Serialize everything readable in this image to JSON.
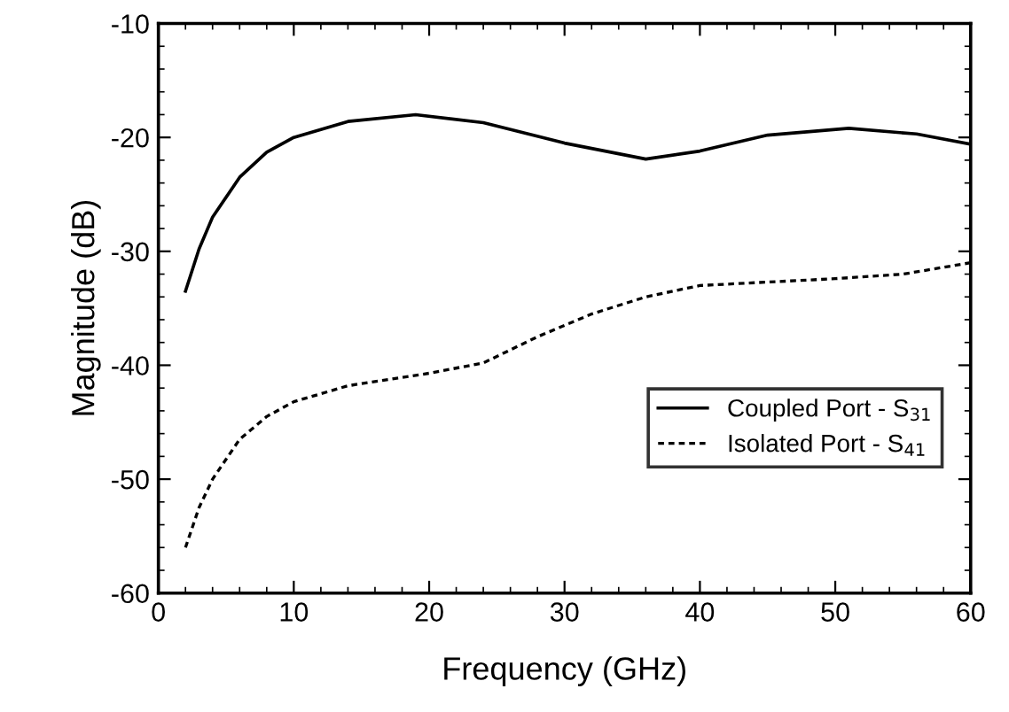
{
  "chart_data": {
    "type": "line",
    "xlabel": "Frequency (GHz)",
    "ylabel": "Magnitude (dB)",
    "xlim": [
      0,
      60
    ],
    "xticks": [
      0,
      10,
      20,
      30,
      40,
      50,
      60
    ],
    "ylim": [
      -60,
      -10
    ],
    "yticks": [
      -60,
      -50,
      -40,
      -30,
      -20,
      -10
    ],
    "grid": false,
    "legend": "bottom right",
    "marker": "none",
    "series": [
      {
        "name": "Coupled Port - S$_{31}$",
        "color": "#000000",
        "line_style": "solid",
        "x": [
          2,
          3,
          4,
          6,
          8,
          10,
          14,
          19,
          24,
          30,
          36,
          40,
          45,
          51,
          56,
          60
        ],
        "values": [
          -33.5,
          -29.8,
          -27,
          -23.5,
          -21.3,
          -20,
          -18.6,
          -18,
          -18.7,
          -20.5,
          -21.9,
          -21.2,
          -19.8,
          -19.2,
          -19.7,
          -20.6
        ]
      },
      {
        "name": "Isolated Port - S$_{41}$",
        "color": "#000000",
        "line_style": "dotted",
        "x": [
          2,
          3,
          4,
          6,
          8,
          10,
          14,
          20,
          24,
          28,
          32,
          36,
          40,
          45,
          50,
          55,
          60
        ],
        "values": [
          -56,
          -52.5,
          -50,
          -46.5,
          -44.5,
          -43.2,
          -41.8,
          -40.7,
          -39.8,
          -37.5,
          -35.5,
          -34,
          -33,
          -32.7,
          -32.4,
          -32,
          -31
        ]
      }
    ]
  }
}
